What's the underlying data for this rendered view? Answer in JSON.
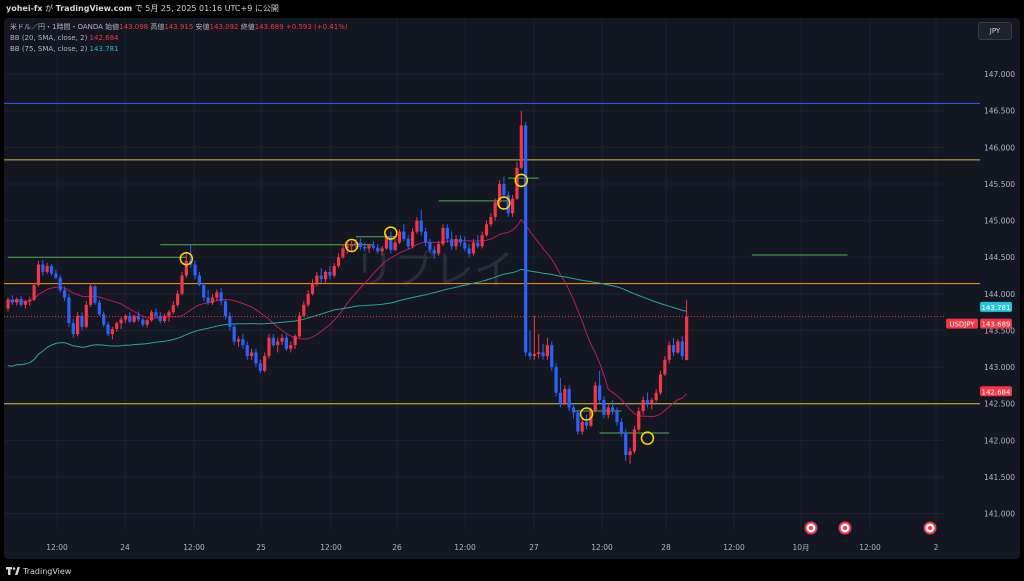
{
  "header": {
    "user": "yohei-fx",
    "on_text": "が",
    "site": "TradingView.com",
    "date_text": "で 5月 25, 2025 01:16 UTC+9 に公開"
  },
  "legend": {
    "symbol": "米ドル／円・1時間・OANDA",
    "open_label": "始値",
    "open": "143.098",
    "high_label": "高値",
    "high": "143.915",
    "low_label": "安値",
    "low": "143.092",
    "close_label": "終値",
    "close": "143.689",
    "change": "+0.593 (+0.41%)",
    "bb1_label": "BB (20, SMA, close, 2)",
    "bb1_value": "142.684",
    "bb2_label": "BB (75, SMA, close, 2)",
    "bb2_value": "143.781"
  },
  "currency_button": "JPY",
  "footer": {
    "brand": "TradingView"
  },
  "watermark": "リプレイ",
  "colors": {
    "bg": "#131722",
    "grid": "#1e2230",
    "up": "#f23645",
    "down": "#2962ff",
    "ma20": "#c2185b",
    "ma75": "#26a69a",
    "yellow_line": "#d4c03a",
    "orange_line": "#ff9800",
    "blue_line": "#2962ff",
    "green_line": "#4caf50"
  },
  "chart_data": {
    "type": "candlestick",
    "price_axis": {
      "ylim": [
        140.94,
        147.22
      ],
      "ticks": [
        "147.000",
        "146.500",
        "146.000",
        "145.500",
        "145.000",
        "144.500",
        "144.000",
        "143.500",
        "143.000",
        "142.500",
        "142.000",
        "141.500",
        "141.000"
      ]
    },
    "time_axis": {
      "labels": [
        "12:00",
        "24",
        "12:00",
        "25",
        "12:00",
        "26",
        "12:00",
        "27",
        "12:00",
        "28",
        "12:00",
        "10月",
        "12:00",
        "2"
      ]
    },
    "price_labels": [
      {
        "text": "143.781",
        "value": 143.781,
        "color": "#26c6da"
      },
      {
        "text": "USDJPY",
        "value": 143.689,
        "color": "#f23645"
      },
      {
        "text": "143.689",
        "value": 143.689,
        "color": "#f23645"
      },
      {
        "text": "142.684",
        "value": 142.684,
        "color": "#f23645"
      }
    ],
    "horizontal_lines": [
      {
        "value": 146.6,
        "color": "#2962ff"
      },
      {
        "value": 145.83,
        "color": "#d4c03a"
      },
      {
        "value": 144.14,
        "color": "#ff9800"
      },
      {
        "value": 142.5,
        "color": "#d4c03a"
      }
    ],
    "green_segments": [
      {
        "x": [
          0,
          41
        ],
        "value": 144.5
      },
      {
        "x": [
          35,
          84
        ],
        "value": 144.67
      },
      {
        "x": [
          80,
          89
        ],
        "value": 144.78
      },
      {
        "x": [
          99,
          115
        ],
        "value": 145.27
      },
      {
        "x": [
          115,
          122
        ],
        "value": 145.58
      },
      {
        "x": [
          130,
          141
        ],
        "value": 142.4
      },
      {
        "x": [
          136,
          152
        ],
        "value": 142.1
      },
      {
        "x": [
          171,
          193
        ],
        "value": 144.53
      }
    ],
    "markers": [
      {
        "i": 41,
        "value": 144.48
      },
      {
        "i": 79,
        "value": 144.66
      },
      {
        "i": 88,
        "value": 144.83
      },
      {
        "i": 114,
        "value": 145.24
      },
      {
        "i": 118,
        "value": 145.55
      },
      {
        "i": 133,
        "value": 142.36
      },
      {
        "i": 147,
        "value": 142.03
      }
    ],
    "candles": [
      [
        143.8,
        143.95,
        143.76,
        143.92
      ],
      [
        143.92,
        143.98,
        143.85,
        143.88
      ],
      [
        143.88,
        143.95,
        143.84,
        143.93
      ],
      [
        143.93,
        143.97,
        143.82,
        143.85
      ],
      [
        143.85,
        143.92,
        143.8,
        143.9
      ],
      [
        143.9,
        143.96,
        143.84,
        143.92
      ],
      [
        143.92,
        144.15,
        143.9,
        144.12
      ],
      [
        144.12,
        144.45,
        144.1,
        144.4
      ],
      [
        144.4,
        144.46,
        144.25,
        144.3
      ],
      [
        144.3,
        144.42,
        144.27,
        144.38
      ],
      [
        144.38,
        144.41,
        144.25,
        144.28
      ],
      [
        144.28,
        144.33,
        144.2,
        144.22
      ],
      [
        144.22,
        144.26,
        144.02,
        144.05
      ],
      [
        144.05,
        144.1,
        143.9,
        143.95
      ],
      [
        143.95,
        144.0,
        143.55,
        143.6
      ],
      [
        143.6,
        143.66,
        143.4,
        143.45
      ],
      [
        143.45,
        143.75,
        143.42,
        143.7
      ],
      [
        143.7,
        143.75,
        143.5,
        143.55
      ],
      [
        143.55,
        143.9,
        143.53,
        143.85
      ],
      [
        143.85,
        144.15,
        143.82,
        144.1
      ],
      [
        144.1,
        144.12,
        143.85,
        143.88
      ],
      [
        143.88,
        143.92,
        143.7,
        143.72
      ],
      [
        143.72,
        143.76,
        143.55,
        143.58
      ],
      [
        143.58,
        143.62,
        143.42,
        143.45
      ],
      [
        143.45,
        143.55,
        143.38,
        143.52
      ],
      [
        143.52,
        143.62,
        143.48,
        143.6
      ],
      [
        143.6,
        143.68,
        143.52,
        143.65
      ],
      [
        143.65,
        143.72,
        143.6,
        143.7
      ],
      [
        143.7,
        143.75,
        143.6,
        143.62
      ],
      [
        143.62,
        143.72,
        143.6,
        143.7
      ],
      [
        143.7,
        143.76,
        143.62,
        143.65
      ],
      [
        143.65,
        143.68,
        143.55,
        143.58
      ],
      [
        143.58,
        143.66,
        143.54,
        143.64
      ],
      [
        143.64,
        143.78,
        143.62,
        143.75
      ],
      [
        143.75,
        143.8,
        143.66,
        143.7
      ],
      [
        143.7,
        143.75,
        143.6,
        143.63
      ],
      [
        143.63,
        143.73,
        143.6,
        143.7
      ],
      [
        143.7,
        143.78,
        143.62,
        143.75
      ],
      [
        143.75,
        143.9,
        143.72,
        143.85
      ],
      [
        143.85,
        144.05,
        143.82,
        144.0
      ],
      [
        144.0,
        144.3,
        143.98,
        144.25
      ],
      [
        144.25,
        144.55,
        144.22,
        144.45
      ],
      [
        144.45,
        144.66,
        144.35,
        144.4
      ],
      [
        144.4,
        144.45,
        144.2,
        144.25
      ],
      [
        144.25,
        144.3,
        144.1,
        144.12
      ],
      [
        144.12,
        144.15,
        143.9,
        143.95
      ],
      [
        143.95,
        144.05,
        143.85,
        143.88
      ],
      [
        143.88,
        144.0,
        143.85,
        143.95
      ],
      [
        143.95,
        144.06,
        143.9,
        144.02
      ],
      [
        144.02,
        144.08,
        143.85,
        143.9
      ],
      [
        143.9,
        143.92,
        143.65,
        143.7
      ],
      [
        143.7,
        143.75,
        143.5,
        143.55
      ],
      [
        143.55,
        143.6,
        143.3,
        143.35
      ],
      [
        143.35,
        143.42,
        143.28,
        143.38
      ],
      [
        143.38,
        143.45,
        143.25,
        143.3
      ],
      [
        143.3,
        143.35,
        143.1,
        143.15
      ],
      [
        143.15,
        143.25,
        143.1,
        143.2
      ],
      [
        143.2,
        143.25,
        143.0,
        143.05
      ],
      [
        143.05,
        143.1,
        142.92,
        142.95
      ],
      [
        142.95,
        143.2,
        142.93,
        143.15
      ],
      [
        143.15,
        143.45,
        143.12,
        143.4
      ],
      [
        143.4,
        143.45,
        143.28,
        143.3
      ],
      [
        143.3,
        143.4,
        143.2,
        143.35
      ],
      [
        143.35,
        143.45,
        143.3,
        143.4
      ],
      [
        143.4,
        143.45,
        143.22,
        143.25
      ],
      [
        143.25,
        143.35,
        143.2,
        143.3
      ],
      [
        143.3,
        143.45,
        143.25,
        143.42
      ],
      [
        143.42,
        143.75,
        143.4,
        143.7
      ],
      [
        143.7,
        143.9,
        143.68,
        143.85
      ],
      [
        143.85,
        144.05,
        143.82,
        144.0
      ],
      [
        144.0,
        144.2,
        143.98,
        144.15
      ],
      [
        144.15,
        144.3,
        144.1,
        144.25
      ],
      [
        144.25,
        144.35,
        144.15,
        144.2
      ],
      [
        144.2,
        144.32,
        144.15,
        144.3
      ],
      [
        144.3,
        144.38,
        144.2,
        144.25
      ],
      [
        144.25,
        144.42,
        144.22,
        144.38
      ],
      [
        144.38,
        144.55,
        144.35,
        144.5
      ],
      [
        144.5,
        144.68,
        144.48,
        144.62
      ],
      [
        144.62,
        144.7,
        144.55,
        144.65
      ],
      [
        144.65,
        144.72,
        144.58,
        144.68
      ],
      [
        144.68,
        144.75,
        144.62,
        144.7
      ],
      [
        144.7,
        144.76,
        144.6,
        144.64
      ],
      [
        144.64,
        144.7,
        144.58,
        144.62
      ],
      [
        144.62,
        144.68,
        144.56,
        144.66
      ],
      [
        144.66,
        144.72,
        144.6,
        144.63
      ],
      [
        144.63,
        144.68,
        144.55,
        144.58
      ],
      [
        144.58,
        144.65,
        144.52,
        144.62
      ],
      [
        144.62,
        144.82,
        144.6,
        144.78
      ],
      [
        144.78,
        144.85,
        144.55,
        144.6
      ],
      [
        144.6,
        144.75,
        144.58,
        144.7
      ],
      [
        144.7,
        144.88,
        144.68,
        144.85
      ],
      [
        144.85,
        144.95,
        144.72,
        144.75
      ],
      [
        144.75,
        144.8,
        144.6,
        144.65
      ],
      [
        144.65,
        144.9,
        144.62,
        144.85
      ],
      [
        144.85,
        145.05,
        144.82,
        145.0
      ],
      [
        145.0,
        145.15,
        144.8,
        144.85
      ],
      [
        144.85,
        144.9,
        144.65,
        144.7
      ],
      [
        144.7,
        144.75,
        144.55,
        144.6
      ],
      [
        144.6,
        144.65,
        144.48,
        144.55
      ],
      [
        144.55,
        144.72,
        144.52,
        144.68
      ],
      [
        144.68,
        144.95,
        144.65,
        144.9
      ],
      [
        144.9,
        144.95,
        144.7,
        144.75
      ],
      [
        144.75,
        144.85,
        144.6,
        144.65
      ],
      [
        144.65,
        144.8,
        144.6,
        144.75
      ],
      [
        144.75,
        144.8,
        144.65,
        144.7
      ],
      [
        144.7,
        144.78,
        144.58,
        144.62
      ],
      [
        144.62,
        144.68,
        144.5,
        144.55
      ],
      [
        144.55,
        144.75,
        144.52,
        144.7
      ],
      [
        144.7,
        144.8,
        144.62,
        144.65
      ],
      [
        144.65,
        144.85,
        144.62,
        144.8
      ],
      [
        144.8,
        145.0,
        144.78,
        144.95
      ],
      [
        144.95,
        145.1,
        144.92,
        145.05
      ],
      [
        145.05,
        145.3,
        145.0,
        145.25
      ],
      [
        145.25,
        145.55,
        145.2,
        145.5
      ],
      [
        145.5,
        145.6,
        145.3,
        145.35
      ],
      [
        145.35,
        145.4,
        145.05,
        145.1
      ],
      [
        145.1,
        145.35,
        145.05,
        145.3
      ],
      [
        145.3,
        145.8,
        145.28,
        145.72
      ],
      [
        145.72,
        146.5,
        145.7,
        146.3
      ],
      [
        146.3,
        146.35,
        143.15,
        143.2
      ],
      [
        143.2,
        143.5,
        143.1,
        143.15
      ],
      [
        143.15,
        143.7,
        143.1,
        143.18
      ],
      [
        143.18,
        143.45,
        143.12,
        143.2
      ],
      [
        143.2,
        143.32,
        143.1,
        143.15
      ],
      [
        143.15,
        143.4,
        143.1,
        143.3
      ],
      [
        143.3,
        143.35,
        142.95,
        143.0
      ],
      [
        143.0,
        143.05,
        142.6,
        142.65
      ],
      [
        142.65,
        142.85,
        142.45,
        142.5
      ],
      [
        142.5,
        142.75,
        142.48,
        142.7
      ],
      [
        142.7,
        142.75,
        142.4,
        142.45
      ],
      [
        142.45,
        142.5,
        142.3,
        142.38
      ],
      [
        142.38,
        142.42,
        142.08,
        142.12
      ],
      [
        142.12,
        142.3,
        142.08,
        142.25
      ],
      [
        142.25,
        142.35,
        142.15,
        142.2
      ],
      [
        142.2,
        142.45,
        142.18,
        142.4
      ],
      [
        142.4,
        142.8,
        142.38,
        142.75
      ],
      [
        142.75,
        142.95,
        142.5,
        142.55
      ],
      [
        142.55,
        142.6,
        142.3,
        142.35
      ],
      [
        142.35,
        142.5,
        142.3,
        142.45
      ],
      [
        142.45,
        142.55,
        142.35,
        142.4
      ],
      [
        142.4,
        142.45,
        142.2,
        142.25
      ],
      [
        142.25,
        142.3,
        142.05,
        142.1
      ],
      [
        142.1,
        142.15,
        141.72,
        141.8
      ],
      [
        141.8,
        141.9,
        141.68,
        141.85
      ],
      [
        141.85,
        142.2,
        141.82,
        142.15
      ],
      [
        142.15,
        142.45,
        142.12,
        142.4
      ],
      [
        142.4,
        142.6,
        142.35,
        142.55
      ],
      [
        142.55,
        142.65,
        142.45,
        142.5
      ],
      [
        142.5,
        142.58,
        142.42,
        142.55
      ],
      [
        142.55,
        142.7,
        142.52,
        142.65
      ],
      [
        142.65,
        142.95,
        142.62,
        142.9
      ],
      [
        142.9,
        143.15,
        142.88,
        143.1
      ],
      [
        143.1,
        143.35,
        143.05,
        143.3
      ],
      [
        143.3,
        143.4,
        143.15,
        143.2
      ],
      [
        143.2,
        143.38,
        143.18,
        143.35
      ],
      [
        143.35,
        143.42,
        143.1,
        143.15
      ],
      [
        143.098,
        143.915,
        143.092,
        143.689
      ]
    ]
  }
}
